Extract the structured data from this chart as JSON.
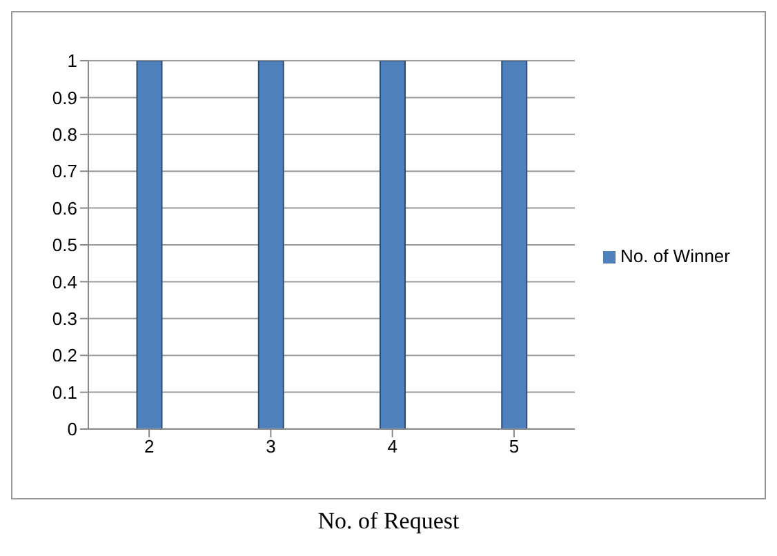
{
  "chart_data": {
    "type": "bar",
    "xlabel": "No. of Request",
    "categories": [
      "2",
      "3",
      "4",
      "5"
    ],
    "series": [
      {
        "name": "No. of Winner",
        "color": "#4f81bd",
        "values": [
          1,
          1,
          1,
          1
        ]
      }
    ],
    "ylim": [
      0,
      1
    ],
    "yticks": [
      0,
      0.1,
      0.2,
      0.3,
      0.4,
      0.5,
      0.6,
      0.7,
      0.8,
      0.9,
      1
    ],
    "grid": "y",
    "legend": "right"
  }
}
